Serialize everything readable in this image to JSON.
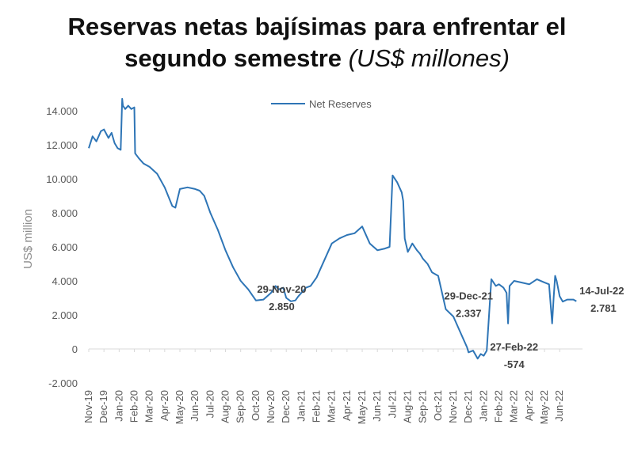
{
  "title": {
    "line1": "Reservas netas bajísimas para enfrentar el",
    "line2": "segundo semestre",
    "unit": "(US$ millones)"
  },
  "chart_data": {
    "type": "line",
    "ylabel": "US$ million",
    "ylim": [
      -2000,
      14000
    ],
    "yticks": [
      -2000,
      0,
      2000,
      4000,
      6000,
      8000,
      10000,
      12000,
      14000
    ],
    "ytick_labels": [
      "-2.000",
      "0",
      "2.000",
      "4.000",
      "6.000",
      "8.000",
      "10.000",
      "12.000",
      "14.000"
    ],
    "xlim": [
      0,
      32.5
    ],
    "x_categories": [
      "Nov-19",
      "Dec-19",
      "Jan-20",
      "Feb-20",
      "Mar-20",
      "Apr-20",
      "May-20",
      "Jun-20",
      "Jul-20",
      "Aug-20",
      "Sep-20",
      "Oct-20",
      "Nov-20",
      "Dec-20",
      "Jan-21",
      "Feb-21",
      "Mar-21",
      "Apr-21",
      "May-21",
      "Jun-21",
      "Jul-21",
      "Aug-21",
      "Sep-21",
      "Oct-21",
      "Nov-21",
      "Dec-21",
      "Jan-22",
      "Feb-22",
      "Mar-22",
      "Apr-22",
      "May-22",
      "Jun-22"
    ],
    "legend": "Net Reserves",
    "color": "#2e75b6",
    "series": [
      {
        "name": "Net Reserves",
        "x": [
          0,
          0.25,
          0.5,
          0.8,
          1.0,
          1.3,
          1.5,
          1.7,
          1.9,
          2.1,
          2.2,
          2.25,
          2.4,
          2.6,
          2.8,
          3.0,
          3.05,
          3.3,
          3.6,
          4.0,
          4.5,
          5.0,
          5.5,
          5.7,
          6.0,
          6.5,
          7.0,
          7.3,
          7.6,
          8.0,
          8.5,
          9.0,
          9.5,
          10.0,
          10.5,
          11.0,
          11.5,
          12.0,
          12.3,
          12.5,
          12.8,
          13.0,
          13.3,
          13.6,
          13.8,
          14.0,
          14.3,
          14.6,
          15.0,
          15.5,
          16.0,
          16.5,
          17.0,
          17.5,
          18.0,
          18.5,
          19.0,
          19.5,
          19.8,
          20.0,
          20.3,
          20.5,
          20.6,
          20.7,
          20.8,
          21.0,
          21.3,
          21.6,
          21.8,
          22.0,
          22.3,
          22.6,
          23.0,
          23.5,
          24.0,
          24.5,
          24.9,
          25.0,
          25.3,
          25.6,
          25.8,
          26.0,
          26.2,
          26.5,
          26.8,
          27.0,
          27.3,
          27.5,
          27.6,
          27.7,
          28.0,
          28.5,
          29.0,
          29.5,
          30.0,
          30.3,
          30.5,
          30.6,
          30.7,
          30.8,
          31.0,
          31.2,
          31.5,
          31.9,
          32.1
        ],
        "y": [
          11800,
          12500,
          12200,
          12800,
          12900,
          12400,
          12700,
          12100,
          11800,
          11700,
          14700,
          14300,
          14100,
          14300,
          14100,
          14200,
          11500,
          11200,
          10900,
          10700,
          10300,
          9500,
          8400,
          8300,
          9400,
          9500,
          9400,
          9300,
          9000,
          8000,
          7000,
          5800,
          4800,
          4000,
          3500,
          2850,
          2900,
          3300,
          3700,
          3500,
          3600,
          3000,
          2800,
          2850,
          3100,
          3300,
          3600,
          3700,
          4200,
          5200,
          6200,
          6500,
          6700,
          6800,
          7200,
          6200,
          5800,
          5900,
          6000,
          10200,
          9800,
          9400,
          9200,
          8700,
          6500,
          5700,
          6200,
          5800,
          5600,
          5300,
          5000,
          4500,
          4300,
          2337,
          1900,
          900,
          100,
          -200,
          -100,
          -574,
          -300,
          -400,
          -100,
          4100,
          3700,
          3800,
          3600,
          3300,
          1500,
          3700,
          4000,
          3900,
          3800,
          4100,
          3900,
          3800,
          1500,
          3000,
          4300,
          4000,
          3100,
          2781,
          2900,
          2900,
          2800
        ]
      }
    ],
    "annotations": [
      {
        "date": "29-Nov-20",
        "value": "2.850"
      },
      {
        "date": "29-Dec-21",
        "value": "2.337"
      },
      {
        "date": "27-Feb-22",
        "value": "-574"
      },
      {
        "date": "14-Jul-22",
        "value": "2.781"
      }
    ]
  }
}
